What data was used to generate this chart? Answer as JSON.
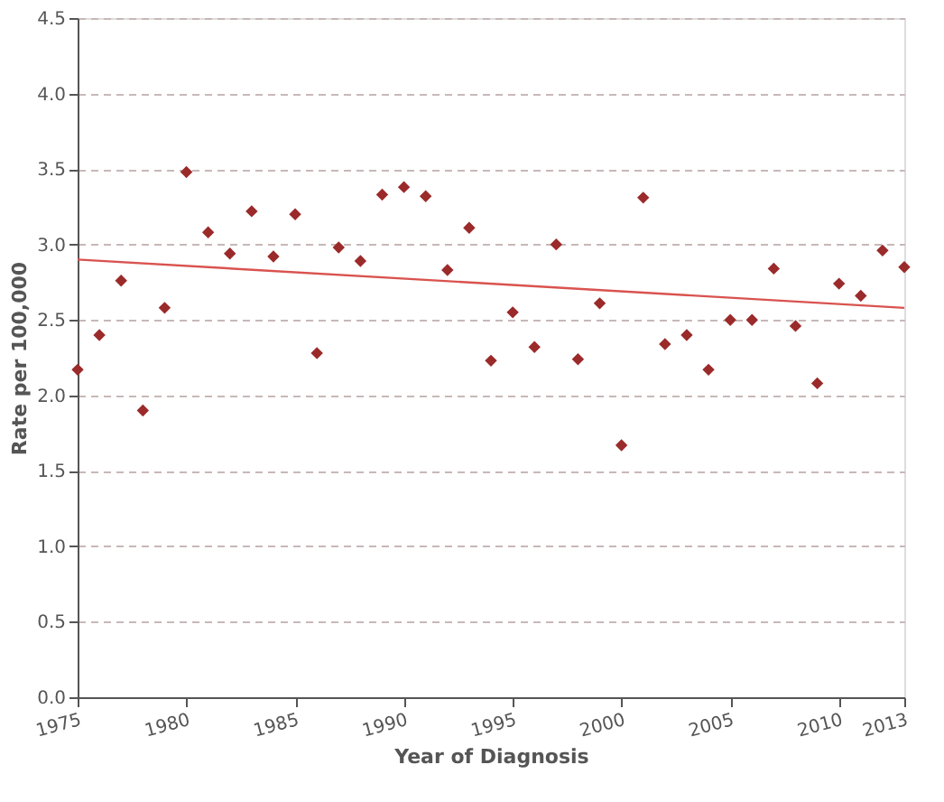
{
  "chart_data": {
    "type": "scatter",
    "xlabel": "Year of Diagnosis",
    "ylabel": "Rate per 100,000",
    "xlim": [
      1975,
      2013
    ],
    "xticks": [
      1975,
      1980,
      1985,
      1990,
      1995,
      2000,
      2005,
      2010,
      2013
    ],
    "ylim": [
      0,
      4.5
    ],
    "yticks": [
      {
        "value": 0,
        "label": "0.0"
      },
      {
        "value": 0.5,
        "label": "0.5"
      },
      {
        "value": 1,
        "label": "1.0"
      },
      {
        "value": 1.5,
        "label": "1.5"
      },
      {
        "value": 2,
        "label": "2.0"
      },
      {
        "value": 2.5,
        "label": "2.5"
      },
      {
        "value": 3,
        "label": "3.0"
      },
      {
        "value": 3.5,
        "label": "3.5"
      },
      {
        "value": 4,
        "label": "4.0"
      },
      {
        "value": 4.5,
        "label": "4.5"
      }
    ],
    "grid": "y",
    "series": [
      {
        "color": "#9b2a2a",
        "marker": "diamond",
        "x": [
          1975,
          1976,
          1977,
          1978,
          1979,
          1980,
          1981,
          1982,
          1983,
          1984,
          1985,
          1986,
          1987,
          1988,
          1989,
          1990,
          1991,
          1992,
          1993,
          1994,
          1995,
          1996,
          1997,
          1998,
          1999,
          2000,
          2001,
          2002,
          2003,
          2004,
          2005,
          2006,
          2007,
          2008,
          2009,
          2010,
          2011,
          2012,
          2013
        ],
        "values": [
          2.17,
          2.4,
          2.76,
          1.9,
          2.58,
          3.48,
          3.08,
          2.94,
          3.22,
          2.92,
          3.2,
          2.28,
          2.98,
          2.89,
          3.33,
          3.38,
          3.32,
          2.83,
          3.11,
          2.23,
          2.55,
          2.32,
          3.0,
          2.24,
          2.61,
          1.67,
          3.31,
          2.34,
          2.4,
          2.17,
          2.5,
          2.5,
          2.84,
          2.46,
          2.08,
          2.74,
          2.66,
          2.96,
          2.85
        ]
      },
      {
        "type": "line",
        "color": "#d9534f",
        "x": [
          1975,
          2013
        ],
        "values": [
          2.9,
          2.58
        ],
        "marker": "none",
        "line_style": "solid"
      }
    ]
  }
}
